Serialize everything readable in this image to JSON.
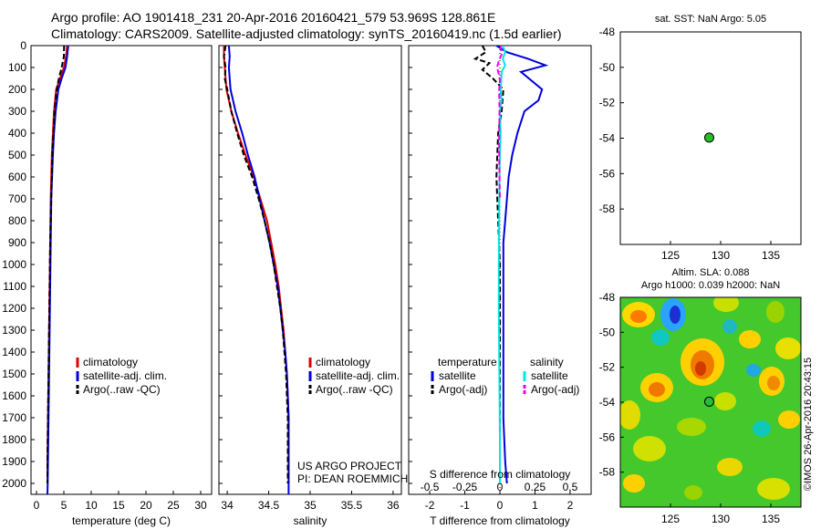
{
  "header": {
    "line1": "Argo profile: AO 1901418_231 20-Apr-2016 20160421_579 53.969S 128.861E",
    "line2": "Climatology: CARS2009. Satellite-adjusted climatology: synTS_20160419.nc (1.5d earlier)"
  },
  "colors": {
    "climatology": "#e00000",
    "satellite": "#0000dd",
    "argo": "#000000",
    "sal_satellite": "#00e5e5",
    "sal_argo": "#ee00ee",
    "position_marker": "#22c022"
  },
  "shared_axis": {
    "depth_ticks": [
      "0",
      "100",
      "200",
      "300",
      "400",
      "500",
      "600",
      "700",
      "800",
      "900",
      "1000",
      "1100",
      "1200",
      "1300",
      "1400",
      "1500",
      "1600",
      "1700",
      "1800",
      "1900",
      "2000"
    ]
  },
  "panels": {
    "temperature": {
      "xlabel": "temperature (deg C)",
      "xticks": [
        "0",
        "5",
        "10",
        "15",
        "20",
        "25",
        "30"
      ],
      "legend": [
        "climatology",
        "satellite-adj. clim.",
        "Argo(..raw -QC)"
      ]
    },
    "salinity": {
      "xlabel": "salinity",
      "xticks": [
        "34",
        "34.5",
        "35",
        "35.5",
        "36"
      ],
      "legend": [
        "climatology",
        "satellite-adj. clim.",
        "Argo(..raw -QC)"
      ],
      "credit_line1": "US ARGO PROJECT",
      "credit_line2": "PI: DEAN ROEMMICH"
    },
    "difference": {
      "top_label": "S difference from climatology",
      "top_ticks": [
        "-0.5",
        "-0.25",
        "0",
        "0.25",
        "0.5"
      ],
      "xlabel": "T difference from climatology",
      "xticks": [
        "-2",
        "-1",
        "0",
        "1",
        "2"
      ],
      "legend_temp_header": "temperature",
      "legend_sal_header": "salinity",
      "legend_satellite": "satellite",
      "legend_argo": "Argo(-adj)"
    },
    "sst_map": {
      "title": "sat. SST: NaN  Argo: 5.05",
      "yticks": [
        "-48",
        "-50",
        "-52",
        "-54",
        "-56",
        "-58"
      ],
      "xticks": [
        "125",
        "130",
        "135"
      ]
    },
    "sla_map": {
      "title1": "Altim. SLA: 0.088",
      "title2": "Argo h1000: 0.039 h2000: NaN",
      "yticks": [
        "-48",
        "-50",
        "-52",
        "-54",
        "-56",
        "-58"
      ],
      "xticks": [
        "125",
        "130",
        "135"
      ],
      "credit": "©IMOS 26-Apr-2016 20:43:15"
    }
  },
  "chart_data": [
    {
      "type": "line",
      "panel": "temperature",
      "xlabel": "temperature (deg C)",
      "ylabel": "",
      "xlim": [
        -1,
        32
      ],
      "ylim": [
        2050,
        0
      ],
      "series": [
        {
          "name": "climatology",
          "color": "#e00000",
          "dashed": false,
          "points": [
            [
              5.6,
              0
            ],
            [
              5.4,
              50
            ],
            [
              5.0,
              100
            ],
            [
              4.3,
              150
            ],
            [
              3.6,
              200
            ],
            [
              3.2,
              300
            ],
            [
              3.0,
              400
            ],
            [
              2.8,
              500
            ],
            [
              2.6,
              700
            ],
            [
              2.5,
              900
            ],
            [
              2.4,
              1100
            ],
            [
              2.3,
              1300
            ],
            [
              2.2,
              1500
            ],
            [
              2.1,
              1700
            ],
            [
              2.0,
              1900
            ],
            [
              2.0,
              2000
            ]
          ]
        },
        {
          "name": "satellite-adj. clim.",
          "color": "#0000dd",
          "dashed": false,
          "points": [
            [
              5.8,
              0
            ],
            [
              5.6,
              50
            ],
            [
              5.3,
              100
            ],
            [
              4.6,
              150
            ],
            [
              4.0,
              200
            ],
            [
              3.5,
              300
            ],
            [
              3.2,
              400
            ],
            [
              3.0,
              500
            ],
            [
              2.7,
              700
            ],
            [
              2.6,
              900
            ],
            [
              2.5,
              1100
            ],
            [
              2.4,
              1300
            ],
            [
              2.3,
              1500
            ],
            [
              2.2,
              1700
            ],
            [
              2.1,
              1900
            ],
            [
              2.05,
              2000
            ],
            [
              2.0,
              2050
            ]
          ]
        },
        {
          "name": "Argo(..raw -QC)",
          "color": "#000000",
          "dashed": true,
          "points": [
            [
              5.05,
              0
            ],
            [
              5.0,
              50
            ],
            [
              4.6,
              100
            ],
            [
              4.1,
              150
            ],
            [
              3.7,
              200
            ],
            [
              3.3,
              300
            ],
            [
              3.1,
              400
            ],
            [
              2.9,
              500
            ],
            [
              2.7,
              700
            ],
            [
              2.5,
              900
            ],
            [
              2.4,
              1100
            ],
            [
              2.3,
              1300
            ],
            [
              2.2,
              1500
            ],
            [
              2.1,
              1700
            ],
            [
              2.0,
              1900
            ],
            [
              2.0,
              2000
            ]
          ]
        }
      ]
    },
    {
      "type": "line",
      "panel": "salinity",
      "xlabel": "salinity",
      "ylabel": "",
      "xlim": [
        33.9,
        36.1
      ],
      "ylim": [
        2050,
        0
      ],
      "series": [
        {
          "name": "climatology",
          "color": "#e00000",
          "dashed": false,
          "points": [
            [
              33.96,
              0
            ],
            [
              33.96,
              50
            ],
            [
              33.97,
              100
            ],
            [
              33.99,
              200
            ],
            [
              34.05,
              300
            ],
            [
              34.13,
              400
            ],
            [
              34.22,
              500
            ],
            [
              34.32,
              600
            ],
            [
              34.4,
              700
            ],
            [
              34.48,
              800
            ],
            [
              34.53,
              900
            ],
            [
              34.58,
              1000
            ],
            [
              34.62,
              1100
            ],
            [
              34.65,
              1200
            ],
            [
              34.68,
              1300
            ],
            [
              34.7,
              1400
            ],
            [
              34.72,
              1500
            ],
            [
              34.73,
              1600
            ],
            [
              34.74,
              1700
            ],
            [
              34.74,
              1800
            ],
            [
              34.74,
              1900
            ],
            [
              34.74,
              2000
            ]
          ]
        },
        {
          "name": "satellite-adj. clim.",
          "color": "#0000dd",
          "dashed": false,
          "points": [
            [
              34.02,
              0
            ],
            [
              34.03,
              50
            ],
            [
              34.02,
              100
            ],
            [
              34.04,
              200
            ],
            [
              34.1,
              300
            ],
            [
              34.18,
              400
            ],
            [
              34.25,
              500
            ],
            [
              34.33,
              600
            ],
            [
              34.39,
              700
            ],
            [
              34.45,
              800
            ],
            [
              34.51,
              900
            ],
            [
              34.56,
              1000
            ],
            [
              34.61,
              1100
            ],
            [
              34.64,
              1200
            ],
            [
              34.67,
              1300
            ],
            [
              34.7,
              1400
            ],
            [
              34.72,
              1500
            ],
            [
              34.73,
              1600
            ],
            [
              34.74,
              1700
            ],
            [
              34.74,
              1800
            ],
            [
              34.74,
              1900
            ],
            [
              34.74,
              2050
            ]
          ]
        },
        {
          "name": "Argo(..raw -QC)",
          "color": "#000000",
          "dashed": true,
          "points": [
            [
              33.98,
              0
            ],
            [
              33.96,
              50
            ],
            [
              33.98,
              100
            ],
            [
              33.97,
              150
            ],
            [
              34.0,
              200
            ],
            [
              34.05,
              300
            ],
            [
              34.12,
              400
            ],
            [
              34.2,
              500
            ],
            [
              34.3,
              600
            ],
            [
              34.38,
              700
            ],
            [
              34.45,
              800
            ],
            [
              34.51,
              900
            ],
            [
              34.56,
              1000
            ],
            [
              34.6,
              1100
            ],
            [
              34.64,
              1200
            ],
            [
              34.67,
              1300
            ],
            [
              34.69,
              1400
            ],
            [
              34.71,
              1500
            ],
            [
              34.72,
              1600
            ],
            [
              34.73,
              1700
            ],
            [
              34.73,
              1800
            ],
            [
              34.73,
              1900
            ],
            [
              34.73,
              2000
            ]
          ]
        }
      ]
    },
    {
      "type": "line",
      "panel": "difference",
      "xlabel": "T difference from climatology",
      "top_xlabel": "S difference from climatology",
      "xlim": [
        -2.6,
        2.6
      ],
      "ylim": [
        2050,
        0
      ],
      "series": [
        {
          "name": "temperature satellite",
          "color": "#0000dd",
          "dashed": false,
          "points": [
            [
              -0.1,
              0
            ],
            [
              0.2,
              30
            ],
            [
              0.8,
              60
            ],
            [
              1.3,
              90
            ],
            [
              0.6,
              120
            ],
            [
              0.9,
              160
            ],
            [
              1.2,
              200
            ],
            [
              1.1,
              250
            ],
            [
              0.7,
              300
            ],
            [
              0.5,
              400
            ],
            [
              0.35,
              500
            ],
            [
              0.25,
              600
            ],
            [
              0.2,
              700
            ],
            [
              0.15,
              800
            ],
            [
              0.1,
              900
            ],
            [
              0.1,
              1100
            ],
            [
              0.1,
              1300
            ],
            [
              0.1,
              1500
            ],
            [
              0.1,
              1700
            ],
            [
              0.15,
              1900
            ],
            [
              0.2,
              2000
            ]
          ]
        },
        {
          "name": "temperature Argo(-adj)",
          "color": "#000000",
          "dashed": true,
          "points": [
            [
              -0.5,
              0
            ],
            [
              -0.4,
              30
            ],
            [
              -0.7,
              60
            ],
            [
              -0.3,
              80
            ],
            [
              -0.5,
              110
            ],
            [
              -0.2,
              150
            ],
            [
              0.1,
              200
            ],
            [
              0.05,
              300
            ],
            [
              -0.05,
              400
            ],
            [
              -0.1,
              600
            ],
            [
              -0.05,
              800
            ],
            [
              0.0,
              1000
            ],
            [
              0.0,
              1200
            ],
            [
              0.0,
              1400
            ],
            [
              0.0,
              1600
            ],
            [
              0.0,
              1800
            ],
            [
              0.0,
              2000
            ]
          ]
        },
        {
          "name": "salinity satellite",
          "color": "#00e5e5",
          "dashed": false,
          "points": [
            [
              0.08,
              0
            ],
            [
              0.15,
              30
            ],
            [
              0.08,
              60
            ],
            [
              0.15,
              90
            ],
            [
              0.05,
              120
            ],
            [
              0.04,
              160
            ],
            [
              0.02,
              200
            ],
            [
              0.05,
              250
            ],
            [
              0.0,
              300
            ],
            [
              0.02,
              400
            ],
            [
              0.0,
              500
            ],
            [
              -0.01,
              600
            ],
            [
              -0.02,
              800
            ],
            [
              -0.03,
              1000
            ],
            [
              -0.03,
              1200
            ],
            [
              -0.02,
              1400
            ],
            [
              -0.01,
              1600
            ],
            [
              0.0,
              1800
            ],
            [
              0.0,
              2000
            ]
          ]
        },
        {
          "name": "salinity Argo(-adj)",
          "color": "#ee00ee",
          "dashed": true,
          "points": [
            [
              0.02,
              0
            ],
            [
              0.05,
              40
            ],
            [
              -0.03,
              70
            ],
            [
              -0.08,
              100
            ],
            [
              -0.03,
              130
            ],
            [
              0.0,
              160
            ],
            [
              -0.02,
              200
            ],
            [
              -0.01,
              300
            ],
            [
              -0.02,
              400
            ],
            [
              -0.02,
              500
            ],
            [
              -0.01,
              600
            ],
            [
              0.0,
              700
            ]
          ]
        }
      ]
    },
    {
      "type": "scatter",
      "panel": "sst_map",
      "title": "sat. SST: NaN  Argo: 5.05",
      "xlim": [
        120,
        138
      ],
      "ylim": [
        -60,
        -48
      ],
      "points": [
        [
          128.861,
          -53.969
        ]
      ]
    },
    {
      "type": "heatmap",
      "panel": "sla_map",
      "title": "Altim. SLA: 0.088",
      "xlim": [
        120,
        138
      ],
      "ylim": [
        -60,
        -48
      ],
      "points": [
        [
          128.861,
          -53.969
        ]
      ]
    }
  ]
}
